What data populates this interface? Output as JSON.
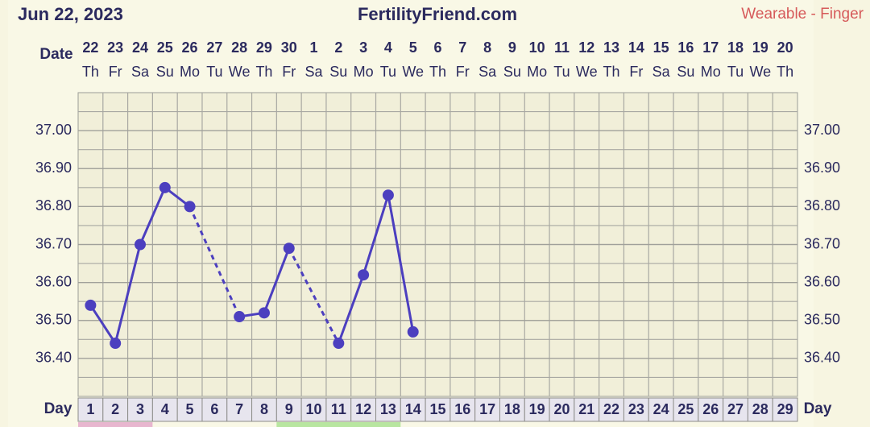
{
  "chart_data": {
    "type": "line",
    "date": "Jun 22, 2023",
    "title": "FertilityFriend.com",
    "subtitle": "Wearable - Finger",
    "date_label": "Date",
    "day_label": "Day",
    "dates": [
      "22",
      "23",
      "24",
      "25",
      "26",
      "27",
      "28",
      "29",
      "30",
      "1",
      "2",
      "3",
      "4",
      "5",
      "6",
      "7",
      "8",
      "9",
      "10",
      "11",
      "12",
      "13",
      "14",
      "15",
      "16",
      "17",
      "18",
      "19",
      "20"
    ],
    "weekdays": [
      "Th",
      "Fr",
      "Sa",
      "Su",
      "Mo",
      "Tu",
      "We",
      "Th",
      "Fr",
      "Sa",
      "Su",
      "Mo",
      "Tu",
      "We",
      "Th",
      "Fr",
      "Sa",
      "Su",
      "Mo",
      "Tu",
      "We",
      "Th",
      "Fr",
      "Sa",
      "Su",
      "Mo",
      "Tu",
      "We",
      "Th"
    ],
    "categories": [
      "1",
      "2",
      "3",
      "4",
      "5",
      "6",
      "7",
      "8",
      "9",
      "10",
      "11",
      "12",
      "13",
      "14",
      "15",
      "16",
      "17",
      "18",
      "19",
      "20",
      "21",
      "22",
      "23",
      "24",
      "25",
      "26",
      "27",
      "28",
      "29"
    ],
    "series": [
      {
        "color": "#4c3fbf",
        "values": [
          36.54,
          36.44,
          36.7,
          36.85,
          36.8,
          null,
          36.51,
          36.52,
          36.69,
          null,
          36.44,
          36.62,
          36.83,
          36.47,
          null,
          null,
          null,
          null,
          null,
          null,
          null,
          null,
          null,
          null,
          null,
          null,
          null,
          null,
          null
        ]
      }
    ],
    "ylim": [
      36.3,
      37.1
    ],
    "yticks": [
      {
        "value": 36.4,
        "label": "36.40"
      },
      {
        "value": 36.5,
        "label": "36.50"
      },
      {
        "value": 36.6,
        "label": "36.60"
      },
      {
        "value": 36.7,
        "label": "36.70"
      },
      {
        "value": 36.8,
        "label": "36.80"
      },
      {
        "value": 36.9,
        "label": "36.90"
      },
      {
        "value": 37.0,
        "label": "37.00"
      }
    ],
    "grid": true
  }
}
